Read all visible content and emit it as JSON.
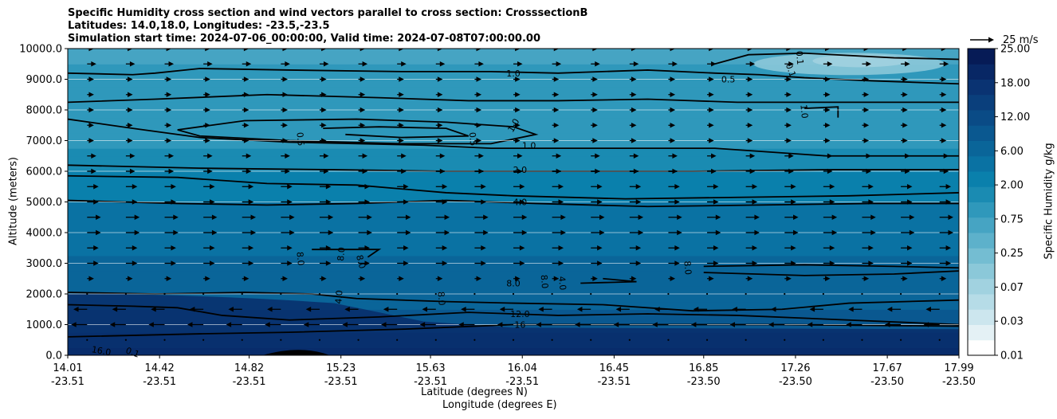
{
  "chart_data": {
    "type": "contourf",
    "title_lines": [
      "Specific Humidity cross section and wind vectors parallel to cross section: CrosssectionB",
      "Latitudes: 14.0,18.0, Longitudes: -23.5,-23.5",
      "Simulation start time: 2024-07-06_00:00:00, Valid time: 2024-07-08T07:00:00.00"
    ],
    "xlabel_lat": "Latitude (degrees N)",
    "xlabel_lon": "Longitude (degrees E)",
    "ylabel": "Altitude (meters)",
    "ylim": [
      0,
      10000
    ],
    "xlim": [
      14.01,
      17.99
    ],
    "y_ticks": [
      "0.0",
      "1000.0",
      "2000.0",
      "3000.0",
      "4000.0",
      "5000.0",
      "6000.0",
      "7000.0",
      "8000.0",
      "9000.0",
      "10000.0"
    ],
    "x_ticks": [
      {
        "lat": "14.01",
        "lon": "-23.51"
      },
      {
        "lat": "14.42",
        "lon": "-23.51"
      },
      {
        "lat": "14.82",
        "lon": "-23.51"
      },
      {
        "lat": "15.23",
        "lon": "-23.51"
      },
      {
        "lat": "15.63",
        "lon": "-23.51"
      },
      {
        "lat": "16.04",
        "lon": "-23.51"
      },
      {
        "lat": "16.45",
        "lon": "-23.51"
      },
      {
        "lat": "16.85",
        "lon": "-23.50"
      },
      {
        "lat": "17.26",
        "lon": "-23.50"
      },
      {
        "lat": "17.67",
        "lon": "-23.50"
      },
      {
        "lat": "17.99",
        "lon": "-23.50"
      }
    ],
    "colorbar": {
      "label": "Specific Humidity g/kg",
      "tick_labels": [
        "0.01",
        "0.03",
        "0.07",
        "0.25",
        "0.75",
        "2.00",
        "6.00",
        "12.00",
        "18.00",
        "25.00"
      ],
      "colors": [
        "#ffffff",
        "#e4f1f5",
        "#cce6ee",
        "#b6dce7",
        "#a1d2e0",
        "#8bc8d9",
        "#74bdd2",
        "#5db1cb",
        "#46a4c3",
        "#2f98bb",
        "#1a8bb2",
        "#0a80ac",
        "#0a72a3",
        "#0a6599",
        "#0a5890",
        "#0a4b86",
        "#0a3f7c",
        "#0a3372",
        "#082765",
        "#061b56"
      ]
    },
    "quiver_key": {
      "label": "25 m/s",
      "speed_ms": 25
    },
    "contour_levels": [
      {
        "value": 0.1,
        "label": "0.1"
      },
      {
        "value": 0.5,
        "label": "0.5"
      },
      {
        "value": 1.0,
        "label": "1.0"
      },
      {
        "value": 2.0,
        "label": "2.0"
      },
      {
        "value": 4.0,
        "label": "4.0"
      },
      {
        "value": 8.0,
        "label": "8.0"
      },
      {
        "value": 12.0,
        "label": "12.0"
      },
      {
        "value": 16.0,
        "label": "16.0"
      }
    ],
    "contour_label_texts": [
      "1.0",
      "0.5",
      "0.5",
      "1.0",
      "1.0",
      "2.0",
      "4.0",
      "8.0",
      "8.0",
      "8.0",
      "8.0",
      "8.0",
      "4.0",
      "4.0",
      "8.0",
      "12.0",
      "16",
      "16.0",
      "0.1",
      "0.1",
      "0.1",
      "0.5",
      "1.0",
      "8.0"
    ],
    "field_bands": [
      {
        "alt": 0,
        "q": 16.0
      },
      {
        "alt": 500,
        "q": 14.0
      },
      {
        "alt": 1000,
        "q": 11.0
      },
      {
        "alt": 1500,
        "q": 9.0
      },
      {
        "alt": 2000,
        "q": 8.0
      },
      {
        "alt": 3000,
        "q": 6.5
      },
      {
        "alt": 4000,
        "q": 5.0
      },
      {
        "alt": 5000,
        "q": 3.5
      },
      {
        "alt": 6000,
        "q": 2.0
      },
      {
        "alt": 7000,
        "q": 0.9
      },
      {
        "alt": 8000,
        "q": 1.1
      },
      {
        "alt": 9000,
        "q": 0.9
      },
      {
        "alt": 10000,
        "q": 0.6
      }
    ],
    "wind_rows": [
      {
        "alt": 500,
        "u": 0
      },
      {
        "alt": 1000,
        "u": -7
      },
      {
        "alt": 1500,
        "u": -6
      },
      {
        "alt": 2000,
        "u": 0
      },
      {
        "alt": 2500,
        "u": 3
      },
      {
        "alt": 3000,
        "u": 5
      },
      {
        "alt": 3500,
        "u": 5
      },
      {
        "alt": 4000,
        "u": 6
      },
      {
        "alt": 4500,
        "u": 6
      },
      {
        "alt": 5000,
        "u": 5
      },
      {
        "alt": 5500,
        "u": 5
      },
      {
        "alt": 6000,
        "u": 4
      },
      {
        "alt": 6500,
        "u": 4
      },
      {
        "alt": 7000,
        "u": 3
      },
      {
        "alt": 7500,
        "u": 3
      },
      {
        "alt": 8000,
        "u": 3
      },
      {
        "alt": 8500,
        "u": 3
      },
      {
        "alt": 9000,
        "u": 3
      },
      {
        "alt": 9500,
        "u": 4
      },
      {
        "alt": 10000,
        "u": 3
      }
    ]
  }
}
